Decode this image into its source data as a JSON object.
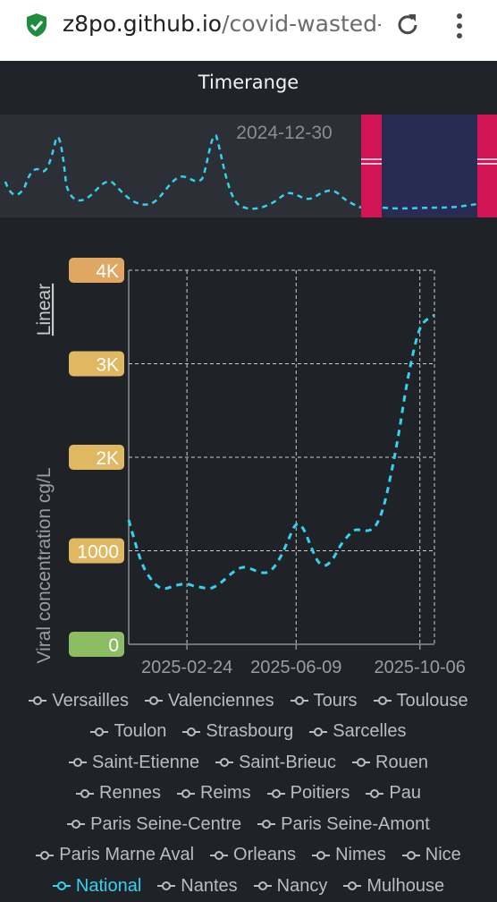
{
  "browser": {
    "url_host": "z8po.github.io",
    "url_path": "/covid-wasted-"
  },
  "header": {
    "title": "Timerange"
  },
  "timerange": {
    "label": "2024-12-30"
  },
  "colors": {
    "line": "#33d2f0",
    "selection_handle": "#d21454",
    "selection_fill": "#282b52",
    "grid": "#cfcfcf",
    "tick_orange": "#dfa761",
    "tick_gold": "#e0b862",
    "tick_green": "#8dbd62"
  },
  "scale_toggle": "Linear",
  "chart_data": {
    "type": "line",
    "ylabel": "Viral concentration cg/L",
    "y_tick_labels": [
      "4K",
      "3K",
      "2K",
      "1000",
      "0"
    ],
    "y_ticks": [
      4000,
      3000,
      2000,
      1000,
      0
    ],
    "x_tick_labels": [
      "2025-02-24",
      "2025-06-09",
      "2025-10-06"
    ],
    "ylim": [
      0,
      4000
    ],
    "series": [
      {
        "name": "National",
        "x": [
          "2024-12-30",
          "2025-01-06",
          "2025-01-13",
          "2025-01-20",
          "2025-01-27",
          "2025-02-03",
          "2025-02-10",
          "2025-02-17",
          "2025-02-24",
          "2025-03-03",
          "2025-03-10",
          "2025-03-17",
          "2025-03-24",
          "2025-03-31",
          "2025-04-07",
          "2025-04-14",
          "2025-04-21",
          "2025-04-28",
          "2025-05-05",
          "2025-05-12",
          "2025-05-19",
          "2025-05-26",
          "2025-06-02",
          "2025-06-09",
          "2025-06-16",
          "2025-06-23",
          "2025-06-30",
          "2025-07-07",
          "2025-07-14",
          "2025-07-21",
          "2025-07-28",
          "2025-08-04",
          "2025-08-11",
          "2025-08-18",
          "2025-08-25",
          "2025-09-01",
          "2025-09-08",
          "2025-09-15",
          "2025-09-22",
          "2025-09-29",
          "2025-10-06",
          "2025-10-13",
          "2025-10-20"
        ],
        "values": [
          1330,
          1050,
          820,
          700,
          610,
          590,
          620,
          640,
          650,
          620,
          610,
          590,
          620,
          680,
          750,
          810,
          830,
          800,
          770,
          760,
          820,
          950,
          1130,
          1310,
          1250,
          1050,
          870,
          830,
          900,
          1050,
          1150,
          1230,
          1220,
          1210,
          1260,
          1450,
          1800,
          2200,
          2700,
          3100,
          3400,
          3480,
          3520
        ]
      }
    ],
    "grid": true
  },
  "legend": {
    "rows": [
      [
        "Versailles",
        "Valenciennes",
        "Tours",
        "Toulouse"
      ],
      [
        "Toulon",
        "Strasbourg",
        "Sarcelles"
      ],
      [
        "Saint-Etienne",
        "Saint-Brieuc",
        "Rouen"
      ],
      [
        "Rennes",
        "Reims",
        "Poitiers",
        "Pau"
      ],
      [
        "Paris Seine-Centre",
        "Paris Seine-Amont"
      ],
      [
        "Paris Marne Aval",
        "Orleans",
        "Nimes",
        "Nice"
      ],
      [
        "National",
        "Nantes",
        "Nancy",
        "Mulhouse"
      ]
    ],
    "active": "National"
  }
}
